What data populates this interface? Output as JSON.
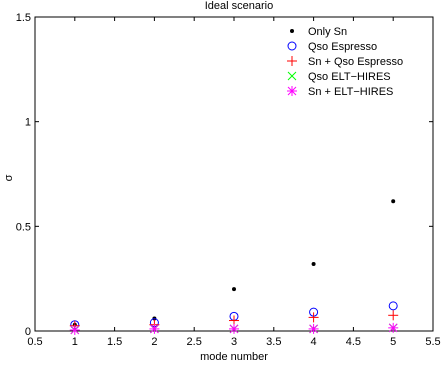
{
  "chart_data": {
    "type": "scatter",
    "title": "Ideal scenario",
    "xlabel": "mode number",
    "ylabel": "σ",
    "xlim": [
      0.5,
      5.5
    ],
    "ylim": [
      0,
      1.5
    ],
    "xticks": [
      0.5,
      1,
      1.5,
      2,
      2.5,
      3,
      3.5,
      4,
      4.5,
      5,
      5.5
    ],
    "xtick_labels": [
      "0.5",
      "1",
      "1.5",
      "2",
      "2.5",
      "3",
      "3.5",
      "4",
      "4.5",
      "5",
      "5.5"
    ],
    "yticks": [
      0,
      0.5,
      1,
      1.5
    ],
    "ytick_labels": [
      "0",
      "0.5",
      "1",
      "1.5"
    ],
    "grid": false,
    "legend_position": "top-right",
    "x": [
      1,
      2,
      3,
      4,
      5
    ],
    "series": [
      {
        "name": "Only Sn",
        "marker": "dot",
        "color": "#000000",
        "values": [
          0.03,
          0.06,
          0.2,
          0.32,
          0.62
        ]
      },
      {
        "name": "Qso Espresso",
        "marker": "circle",
        "color": "#0000ff",
        "values": [
          0.03,
          0.04,
          0.07,
          0.09,
          0.12
        ]
      },
      {
        "name": "Sn + Qso Espresso",
        "marker": "plus",
        "color": "#ff0000",
        "values": [
          0.025,
          0.03,
          0.05,
          0.065,
          0.075
        ]
      },
      {
        "name": "Qso ELT−HIRES",
        "marker": "x",
        "color": "#00ff00",
        "values": [
          0.005,
          0.01,
          0.01,
          0.01,
          0.015
        ]
      },
      {
        "name": "Sn + ELT−HIRES",
        "marker": "star",
        "color": "#ff00ff",
        "values": [
          0.005,
          0.01,
          0.01,
          0.01,
          0.015
        ]
      }
    ]
  }
}
